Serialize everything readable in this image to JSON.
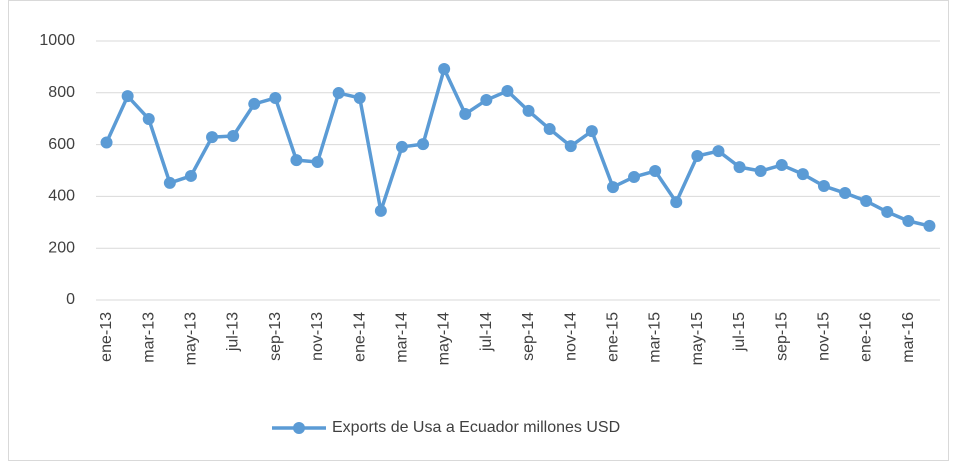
{
  "chart_data": {
    "type": "line",
    "categories": [
      "ene-13",
      null,
      "mar-13",
      null,
      "may-13",
      null,
      "jul-13",
      null,
      "sep-13",
      null,
      "nov-13",
      null,
      "ene-14",
      null,
      "mar-14",
      null,
      "may-14",
      null,
      "jul-14",
      null,
      "sep-14",
      null,
      "nov-14",
      null,
      "ene-15",
      null,
      "mar-15",
      null,
      "may-15",
      null,
      "jul-15",
      null,
      "sep-15",
      null,
      "nov-15",
      null,
      "ene-16",
      null,
      "mar-16",
      null
    ],
    "series": [
      {
        "name": "Exports de Usa a Ecuador millones USD",
        "color": "#5b9bd5",
        "values": [
          608,
          787,
          699,
          452,
          479,
          629,
          633,
          757,
          780,
          540,
          533,
          799,
          780,
          344,
          591,
          602,
          892,
          718,
          772,
          807,
          730,
          660,
          594,
          652,
          436,
          475,
          498,
          378,
          556,
          575,
          513,
          498,
          521,
          486,
          440,
          413,
          382,
          340,
          305,
          286
        ]
      }
    ],
    "ylim": [
      0,
      1000
    ],
    "yticks": [
      0,
      200,
      400,
      600,
      800,
      1000
    ],
    "grid": true,
    "legend": "bottom"
  }
}
